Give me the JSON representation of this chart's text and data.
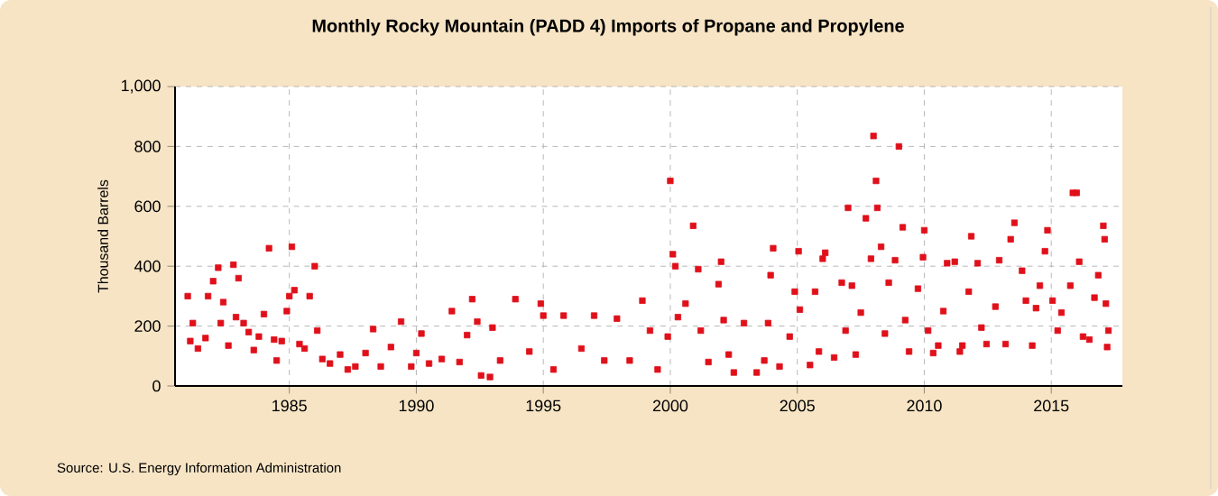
{
  "chart_data": {
    "type": "scatter",
    "title": "**Monthly Rocky Mountain (PADD 4) Imports of Propane and Propylene**",
    "ylabel": "Thousand Barrels",
    "annotations": [
      "Source: U.S. Energy Information Administration"
    ],
    "xlim": [
      1980.5,
      2017.8
    ],
    "xticks": [
      1985,
      1990,
      1995,
      2000,
      2005,
      2010,
      2015
    ],
    "ylim": [
      0,
      1000
    ],
    "yticks": [
      0,
      200,
      400,
      600,
      800,
      {
        "value": 1000,
        "label": "1,000"
      }
    ],
    "grid": true,
    "marker": "square",
    "series": [
      {
        "color": "#e0101a",
        "x": [
          1981.0,
          1981.1,
          1981.2,
          1981.4,
          1981.7,
          1981.8,
          1982.0,
          1982.2,
          1982.3,
          1982.4,
          1982.6,
          1982.8,
          1982.9,
          1983.0,
          1983.2,
          1983.4,
          1983.6,
          1983.8,
          1984.0,
          1984.2,
          1984.4,
          1984.5,
          1984.7,
          1984.9,
          1985.0,
          1985.1,
          1985.2,
          1985.4,
          1985.6,
          1985.8,
          1986.0,
          1986.1,
          1986.3,
          1986.6,
          1987.0,
          1987.3,
          1987.6,
          1988.0,
          1988.3,
          1988.6,
          1989.0,
          1989.4,
          1989.8,
          1990.0,
          1990.2,
          1990.5,
          1991.0,
          1991.4,
          1991.7,
          1992.0,
          1992.2,
          1992.4,
          1992.55,
          1992.9,
          1993.0,
          1993.3,
          1993.9,
          1994.45,
          1994.9,
          1995.0,
          1995.4,
          1995.8,
          1996.5,
          1997.0,
          1997.4,
          1997.9,
          1998.4,
          1998.9,
          1999.2,
          1999.5,
          1999.9,
          2000.0,
          2000.1,
          2000.2,
          2000.3,
          2000.6,
          2000.9,
          2001.1,
          2001.2,
          2001.5,
          2001.9,
          2002.0,
          2002.1,
          2002.3,
          2002.5,
          2002.9,
          2003.4,
          2003.7,
          2003.85,
          2003.95,
          2004.05,
          2004.3,
          2004.7,
          2004.9,
          2005.05,
          2005.1,
          2005.5,
          2005.7,
          2005.85,
          2006.0,
          2006.1,
          2006.45,
          2006.75,
          2006.9,
          2007.0,
          2007.15,
          2007.3,
          2007.5,
          2007.7,
          2007.9,
          2008.0,
          2008.1,
          2008.15,
          2008.3,
          2008.45,
          2008.6,
          2008.85,
          2009.0,
          2009.15,
          2009.25,
          2009.4,
          2009.75,
          2009.95,
          2010.0,
          2010.15,
          2010.35,
          2010.55,
          2010.75,
          2010.9,
          2011.2,
          2011.4,
          2011.5,
          2011.75,
          2011.85,
          2012.1,
          2012.25,
          2012.45,
          2012.8,
          2012.95,
          2013.2,
          2013.4,
          2013.55,
          2013.85,
          2014.0,
          2014.25,
          2014.4,
          2014.55,
          2014.75,
          2014.85,
          2015.05,
          2015.25,
          2015.4,
          2015.75,
          2015.85,
          2016.0,
          2016.1,
          2016.25,
          2016.5,
          2016.7,
          2016.85,
          2017.05,
          2017.1,
          2017.15,
          2017.2,
          2017.25
        ],
        "values": [
          300,
          150,
          210,
          125,
          160,
          300,
          350,
          395,
          210,
          280,
          135,
          405,
          230,
          360,
          210,
          180,
          120,
          165,
          240,
          460,
          155,
          85,
          150,
          250,
          300,
          465,
          320,
          140,
          125,
          300,
          400,
          185,
          90,
          75,
          105,
          55,
          65,
          110,
          190,
          65,
          130,
          215,
          65,
          110,
          175,
          75,
          90,
          250,
          80,
          170,
          290,
          215,
          35,
          30,
          195,
          85,
          290,
          115,
          275,
          235,
          55,
          235,
          125,
          235,
          85,
          225,
          85,
          285,
          185,
          55,
          165,
          685,
          440,
          400,
          230,
          275,
          535,
          390,
          185,
          80,
          340,
          415,
          220,
          105,
          45,
          210,
          45,
          85,
          210,
          370,
          460,
          65,
          165,
          315,
          450,
          255,
          70,
          315,
          115,
          425,
          445,
          95,
          345,
          185,
          595,
          335,
          105,
          245,
          560,
          425,
          835,
          685,
          595,
          465,
          175,
          345,
          420,
          800,
          530,
          220,
          115,
          325,
          430,
          520,
          185,
          110,
          135,
          250,
          410,
          415,
          115,
          135,
          315,
          500,
          410,
          195,
          140,
          265,
          420,
          140,
          490,
          545,
          385,
          285,
          135,
          260,
          335,
          450,
          520,
          285,
          185,
          245,
          335,
          645,
          645,
          415,
          165,
          155,
          295,
          370,
          535,
          490,
          275,
          130,
          185
        ]
      }
    ]
  }
}
